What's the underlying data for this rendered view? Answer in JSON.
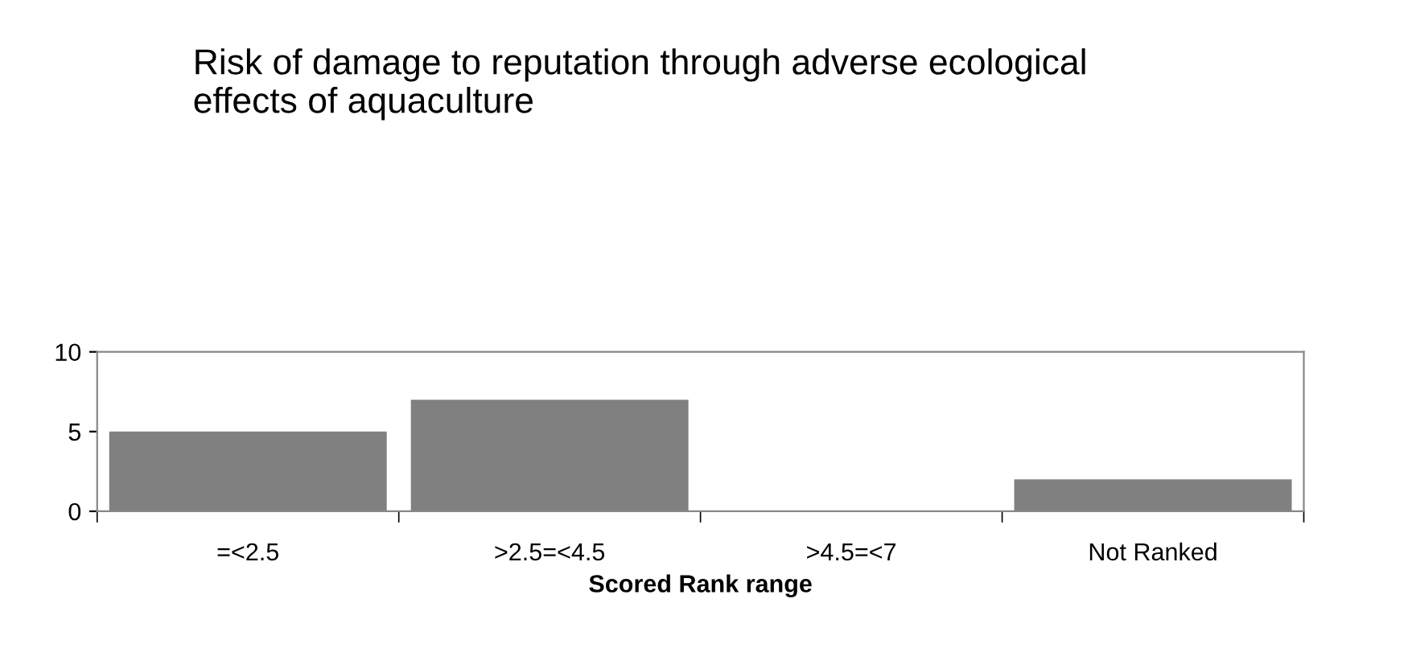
{
  "chart_data": {
    "type": "bar",
    "title": "Risk of damage to reputation through adverse ecological\neffects of aquaculture",
    "xlabel": "Scored Rank range",
    "categories": [
      "=<2.5",
      ">2.5=<4.5",
      ">4.5=<7",
      "Not Ranked"
    ],
    "values": [
      5,
      7,
      0,
      2
    ],
    "color": "#808080",
    "ylim": [
      0,
      10
    ],
    "yticks": [
      0,
      5,
      10
    ],
    "grid": false,
    "legend": false
  }
}
